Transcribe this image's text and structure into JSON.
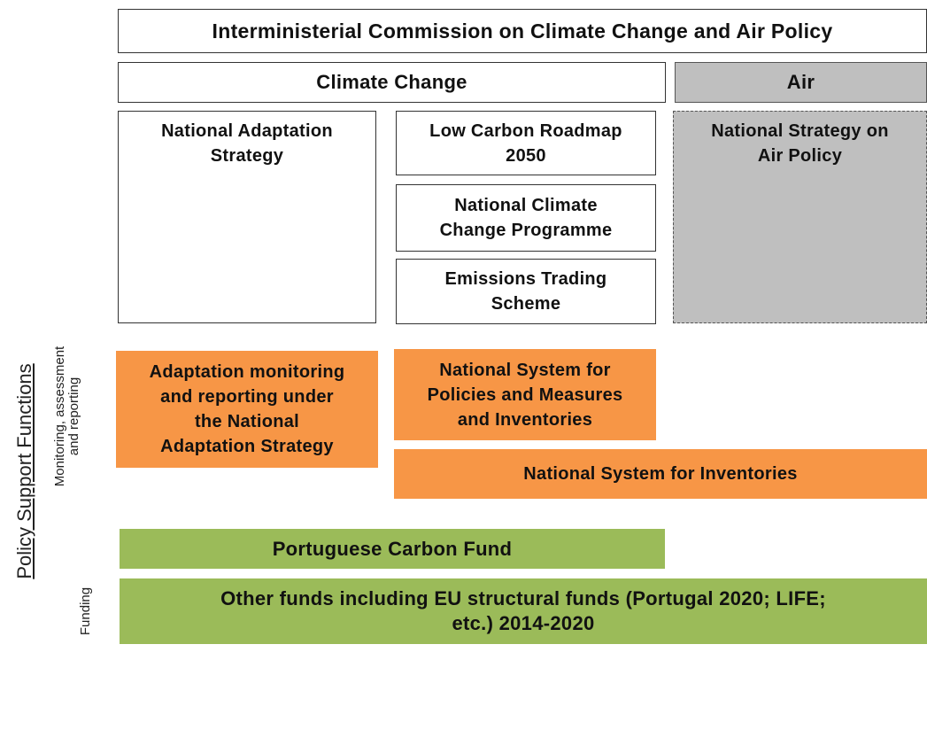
{
  "header": {
    "title": [
      "Interministerial  Commission on Climate Change and Air Policy"
    ]
  },
  "domains": {
    "climate": [
      "Climate Change"
    ],
    "air": [
      "Air"
    ]
  },
  "policies": {
    "adaptation": [
      "National Adaptation",
      "Strategy"
    ],
    "roadmap": [
      "Low Carbon Roadmap",
      "2050"
    ],
    "programme": [
      "National Climate",
      "Change Programme"
    ],
    "ets": [
      "Emissions Trading",
      "Scheme"
    ],
    "air_strategy": [
      "National Strategy on",
      "Air Policy"
    ]
  },
  "monitoring": {
    "adaptation": [
      "Adaptation monitoring",
      "and reporting  under",
      "the National",
      "Adaptation Strategy"
    ],
    "pams": [
      "National System for",
      "Policies and Measures",
      "and Inventories"
    ],
    "inventories": [
      "National System for Inventories"
    ]
  },
  "funding": {
    "carbon_fund": [
      "Portuguese Carbon Fund"
    ],
    "other": [
      "Other funds including EU structural funds (Portugal 2020; LIFE;",
      "etc.) 2014-2020"
    ]
  },
  "side_labels": {
    "main": [
      "Policy Support Functions"
    ],
    "monitoring": [
      "Monitoring, assessment",
      "and reporting"
    ],
    "funding": [
      "Funding"
    ]
  }
}
